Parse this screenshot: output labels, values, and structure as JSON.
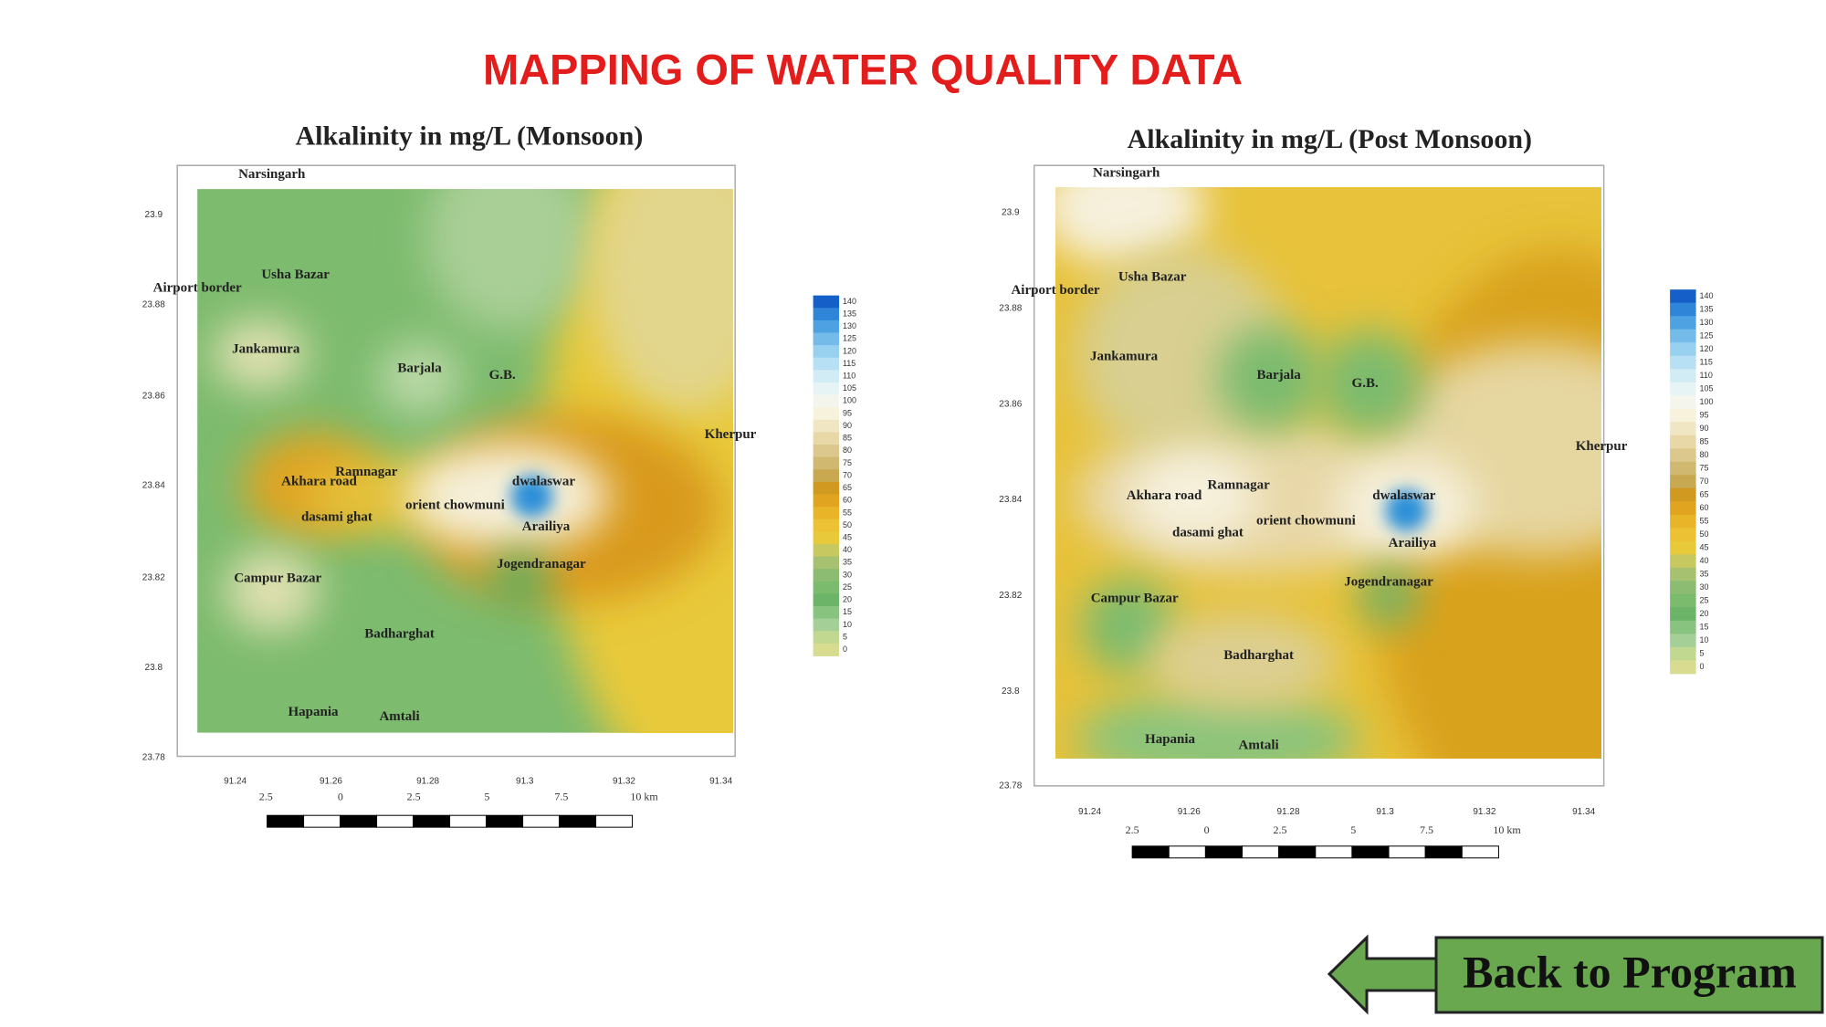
{
  "title": "MAPPING OF WATER QUALITY DATA",
  "maps": [
    {
      "title": "Alkalinity in mg/L (Monsoon)",
      "places": [
        "Narsingarh",
        "Usha Bazar",
        "Airport border",
        "Jankamura",
        "Barjala",
        "G.B.",
        "Kherpur",
        "Ramnagar",
        "Akhara road",
        "dasami ghat",
        "orient chowmuni",
        "dwalaswar",
        "Arailiya",
        "Jogendranagar",
        "Campur Bazar",
        "Badharghat",
        "Hapania",
        "Amtali"
      ],
      "yticks": [
        "23.9",
        "23.88",
        "23.86",
        "23.84",
        "23.82",
        "23.8",
        "23.78"
      ],
      "xticks": [
        "91.24",
        "91.26",
        "91.28",
        "91.3",
        "91.32",
        "91.34"
      ],
      "scale": [
        "2.5",
        "0",
        "2.5",
        "5",
        "7.5",
        "10 km"
      ],
      "legend": [
        "140",
        "135",
        "130",
        "125",
        "120",
        "115",
        "110",
        "105",
        "100",
        "95",
        "90",
        "85",
        "80",
        "75",
        "70",
        "65",
        "60",
        "55",
        "50",
        "45",
        "40",
        "35",
        "30",
        "25",
        "20",
        "15",
        "10",
        "5",
        "0"
      ]
    },
    {
      "title": "Alkalinity in mg/L (Post Monsoon)",
      "places": [
        "Narsingarh",
        "Usha Bazar",
        "Airport border",
        "Jankamura",
        "Barjala",
        "G.B.",
        "Kherpur",
        "Ramnagar",
        "Akhara road",
        "dasami ghat",
        "orient chowmuni",
        "dwalaswar",
        "Arailiya",
        "Jogendranagar",
        "Campur Bazar",
        "Badharghat",
        "Hapania",
        "Amtali"
      ],
      "yticks": [
        "23.9",
        "23.88",
        "23.86",
        "23.84",
        "23.82",
        "23.8",
        "23.78"
      ],
      "xticks": [
        "91.24",
        "91.26",
        "91.28",
        "91.3",
        "91.32",
        "91.34"
      ],
      "scale": [
        "2.5",
        "0",
        "2.5",
        "5",
        "7.5",
        "10 km"
      ],
      "legend": [
        "140",
        "135",
        "130",
        "125",
        "120",
        "115",
        "110",
        "105",
        "100",
        "95",
        "90",
        "85",
        "80",
        "75",
        "70",
        "65",
        "60",
        "55",
        "50",
        "45",
        "40",
        "35",
        "30",
        "25",
        "20",
        "15",
        "10",
        "5",
        "0"
      ]
    }
  ],
  "button": "Back to Program"
}
